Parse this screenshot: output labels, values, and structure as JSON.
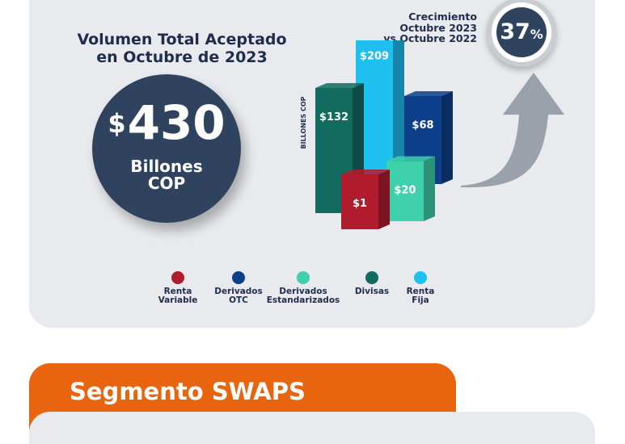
{
  "header": {
    "title_line1": "Volumen Total Aceptado",
    "title_line2": "en Octubre de 2023"
  },
  "total": {
    "currency": "$",
    "value": "430",
    "unit_line1": "Billones",
    "unit_line2": "COP"
  },
  "growth": {
    "label_line1": "Crecimiento",
    "label_line2": "Octubre 2023",
    "label_line3": "vs Octubre 2022",
    "value": "37",
    "unit": "%"
  },
  "legend": [
    {
      "line1": "Renta",
      "line2": "Variable",
      "color": "#b01c2e"
    },
    {
      "line1": "Derivados",
      "line2": "OTC",
      "color": "#0d3f8a"
    },
    {
      "line1": "Derivados",
      "line2": "Estandarizados",
      "color": "#3fd1ac"
    },
    {
      "line1": "Divisas",
      "line2": "",
      "color": "#126b5f"
    },
    {
      "line1": "Renta",
      "line2": "Fija",
      "color": "#1ec0ef"
    }
  ],
  "chart_data": {
    "type": "bar",
    "ylabel": "BILLONES COP",
    "categories": [
      "Divisas",
      "Renta Fija",
      "Derivados OTC",
      "Renta Variable",
      "Derivados Estandarizados"
    ],
    "values": [
      132,
      209,
      68,
      1,
      20
    ],
    "value_labels": [
      "$132",
      "$209",
      "$68",
      "$1",
      "$20"
    ],
    "colors": [
      "#126b5f",
      "#1ec0ef",
      "#0d3f8a",
      "#b01c2e",
      "#3fd1ac"
    ]
  },
  "section": {
    "title": "Segmento SWAPS"
  }
}
